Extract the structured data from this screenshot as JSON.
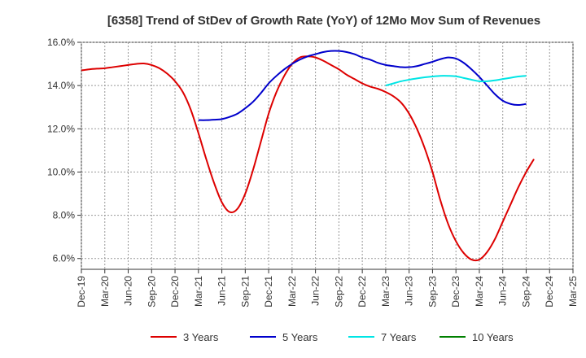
{
  "chart_data": {
    "type": "line",
    "title": "[6358]  Trend of StDev of Growth Rate (YoY) of 12Mo Mov Sum of Revenues",
    "xlabel": "",
    "ylabel": "",
    "ylim": [
      5.5,
      16.0
    ],
    "yticks": [
      6.0,
      8.0,
      10.0,
      12.0,
      14.0,
      16.0
    ],
    "ytick_labels": [
      "6.0%",
      "8.0%",
      "10.0%",
      "12.0%",
      "14.0%",
      "16.0%"
    ],
    "x_tick_labels": [
      "Dec-19",
      "Mar-20",
      "Jun-20",
      "Sep-20",
      "Dec-20",
      "Mar-21",
      "Jun-21",
      "Sep-21",
      "Dec-21",
      "Mar-22",
      "Jun-22",
      "Sep-22",
      "Dec-22",
      "Mar-23",
      "Jun-23",
      "Sep-23",
      "Dec-23",
      "Mar-24",
      "Jun-24",
      "Sep-24",
      "Dec-24",
      "Mar-25"
    ],
    "x_range_months": [
      0,
      63
    ],
    "grid": true,
    "legend_position": "bottom",
    "series": [
      {
        "name": "3 Years",
        "color": "#dd0000",
        "start_month": 0,
        "values": [
          14.7,
          14.75,
          14.78,
          14.8,
          14.85,
          14.9,
          14.95,
          15.0,
          15.02,
          14.95,
          14.8,
          14.55,
          14.2,
          13.7,
          12.9,
          11.8,
          10.6,
          9.5,
          8.6,
          8.15,
          8.3,
          9.0,
          10.1,
          11.4,
          12.7,
          13.7,
          14.45,
          15.0,
          15.3,
          15.35,
          15.3,
          15.15,
          14.95,
          14.75,
          14.5,
          14.3,
          14.1,
          13.95,
          13.85,
          13.7,
          13.5,
          13.2,
          12.7,
          12.0,
          11.1,
          10.0,
          8.7,
          7.6,
          6.8,
          6.25,
          5.95,
          5.95,
          6.3,
          6.9,
          7.7,
          8.5,
          9.3,
          10.0,
          10.6
        ]
      },
      {
        "name": "5 Years",
        "color": "#0000cc",
        "start_month": 15,
        "values": [
          12.4,
          12.4,
          12.42,
          12.45,
          12.55,
          12.7,
          12.95,
          13.25,
          13.65,
          14.1,
          14.45,
          14.75,
          15.0,
          15.2,
          15.35,
          15.45,
          15.55,
          15.6,
          15.6,
          15.55,
          15.45,
          15.3,
          15.2,
          15.05,
          14.95,
          14.9,
          14.85,
          14.85,
          14.9,
          15.0,
          15.1,
          15.22,
          15.3,
          15.25,
          15.05,
          14.75,
          14.4,
          14.0,
          13.6,
          13.3,
          13.15,
          13.1,
          13.15
        ]
      },
      {
        "name": "7 Years",
        "color": "#00e5e5",
        "start_month": 39,
        "values": [
          14.0,
          14.1,
          14.2,
          14.27,
          14.33,
          14.38,
          14.42,
          14.45,
          14.45,
          14.43,
          14.35,
          14.27,
          14.2,
          14.2,
          14.24,
          14.3,
          14.36,
          14.42,
          14.45
        ]
      },
      {
        "name": "10 Years",
        "color": "#008000",
        "start_month": 0,
        "values": []
      }
    ]
  }
}
